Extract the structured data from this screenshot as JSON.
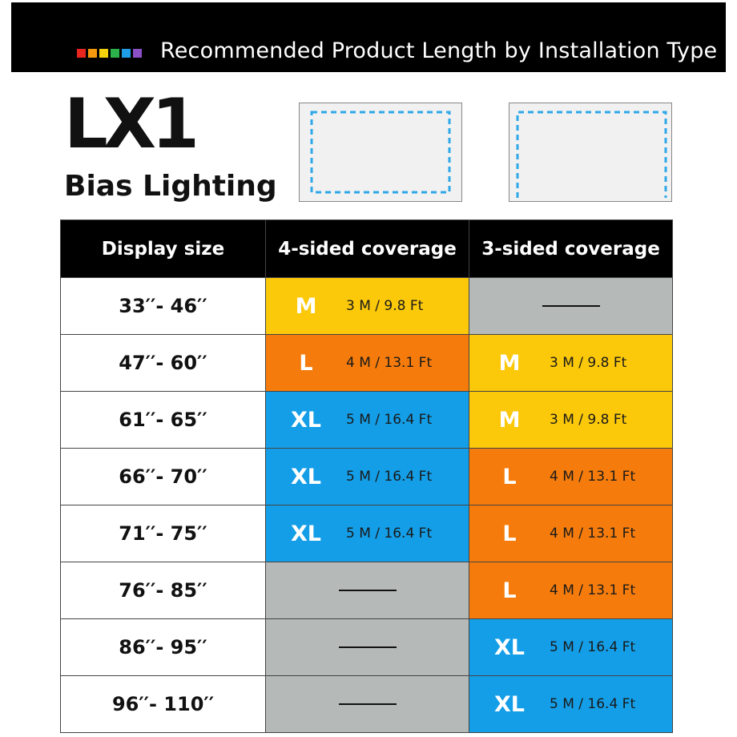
{
  "banner": {
    "title": "Recommended Product Length by Installation Type",
    "square_colors": [
      "#e8251f",
      "#f59a0e",
      "#f4d10a",
      "#2bb24a",
      "#1e9ee6",
      "#8b4fc6"
    ]
  },
  "brand": {
    "logo": "LX1",
    "subtitle": "Bias Lighting"
  },
  "diagrams": [
    {
      "name": "4-sided",
      "sides": 4
    },
    {
      "name": "3-sided",
      "sides": 3
    }
  ],
  "colors": {
    "M": "#fbc80a",
    "L": "#f57c0c",
    "XL": "#149ee7",
    "none": "#b5bab8",
    "dash_border": "#2ea8e8"
  },
  "table": {
    "headers": [
      "Display size",
      "4-sided coverage",
      "3-sided coverage"
    ],
    "rows": [
      {
        "size": "33′′- 46′′",
        "four": {
          "code": "M",
          "length": "3 M / 9.8 Ft"
        },
        "three": {
          "code": "none"
        }
      },
      {
        "size": "47′′- 60′′",
        "four": {
          "code": "L",
          "length": "4 M / 13.1 Ft"
        },
        "three": {
          "code": "M",
          "length": "3 M / 9.8 Ft"
        }
      },
      {
        "size": "61′′- 65′′",
        "four": {
          "code": "XL",
          "length": "5 M / 16.4 Ft"
        },
        "three": {
          "code": "M",
          "length": "3 M / 9.8 Ft"
        }
      },
      {
        "size": "66′′- 70′′",
        "four": {
          "code": "XL",
          "length": "5 M / 16.4 Ft"
        },
        "three": {
          "code": "L",
          "length": "4 M / 13.1 Ft"
        }
      },
      {
        "size": "71′′- 75′′",
        "four": {
          "code": "XL",
          "length": "5 M / 16.4 Ft"
        },
        "three": {
          "code": "L",
          "length": "4 M / 13.1 Ft"
        }
      },
      {
        "size": "76′′- 85′′",
        "four": {
          "code": "none"
        },
        "three": {
          "code": "L",
          "length": "4 M / 13.1 Ft"
        }
      },
      {
        "size": "86′′- 95′′",
        "four": {
          "code": "none"
        },
        "three": {
          "code": "XL",
          "length": "5 M / 16.4 Ft"
        }
      },
      {
        "size": "96′′- 110′′",
        "four": {
          "code": "none"
        },
        "three": {
          "code": "XL",
          "length": "5 M / 16.4 Ft"
        }
      }
    ]
  }
}
